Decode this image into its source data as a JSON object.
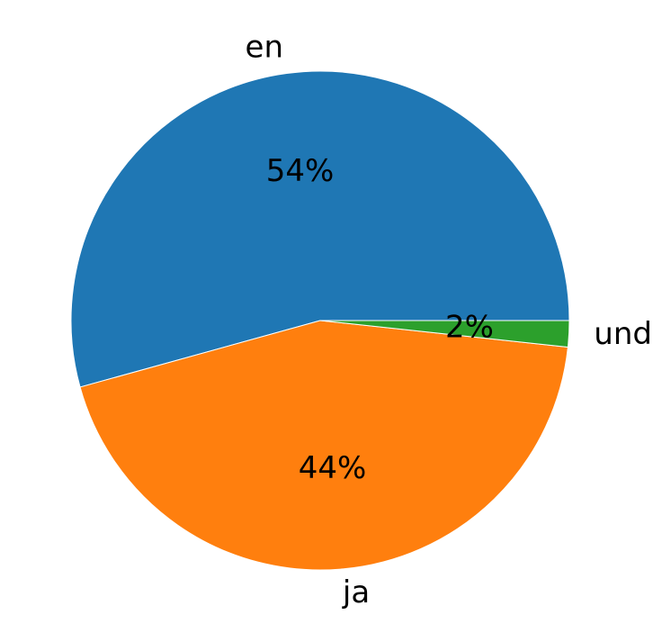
{
  "chart_data": {
    "type": "pie",
    "start_angle_deg": 0,
    "direction": "counterclockwise",
    "slices": [
      {
        "label": "en",
        "value": 54.3,
        "pct_label": "54%",
        "color": "#1f77b4"
      },
      {
        "label": "ja",
        "value": 44.0,
        "pct_label": "44%",
        "color": "#ff7f0e"
      },
      {
        "label": "und",
        "value": 1.7,
        "pct_label": "2%",
        "color": "#2ca02c"
      }
    ]
  }
}
